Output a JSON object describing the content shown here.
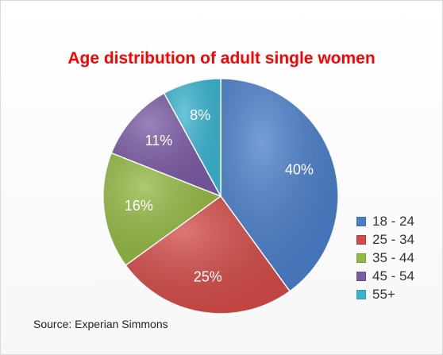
{
  "chart_data": {
    "type": "pie",
    "title": "Age distribution of adult single women",
    "categories": [
      "18 - 24",
      "25 - 34",
      "35 - 44",
      "45 - 54",
      "55+"
    ],
    "values": [
      40,
      25,
      16,
      11,
      8
    ],
    "labels": [
      "40%",
      "25%",
      "16%",
      "11%",
      "8%"
    ],
    "colors": [
      "#4a7ec9",
      "#d24b48",
      "#93b843",
      "#7a5aa3",
      "#3bb3cf"
    ],
    "legend_position": "right",
    "start_angle": "12 o'clock",
    "direction": "clockwise"
  },
  "source": "Source: Experian Simmons"
}
